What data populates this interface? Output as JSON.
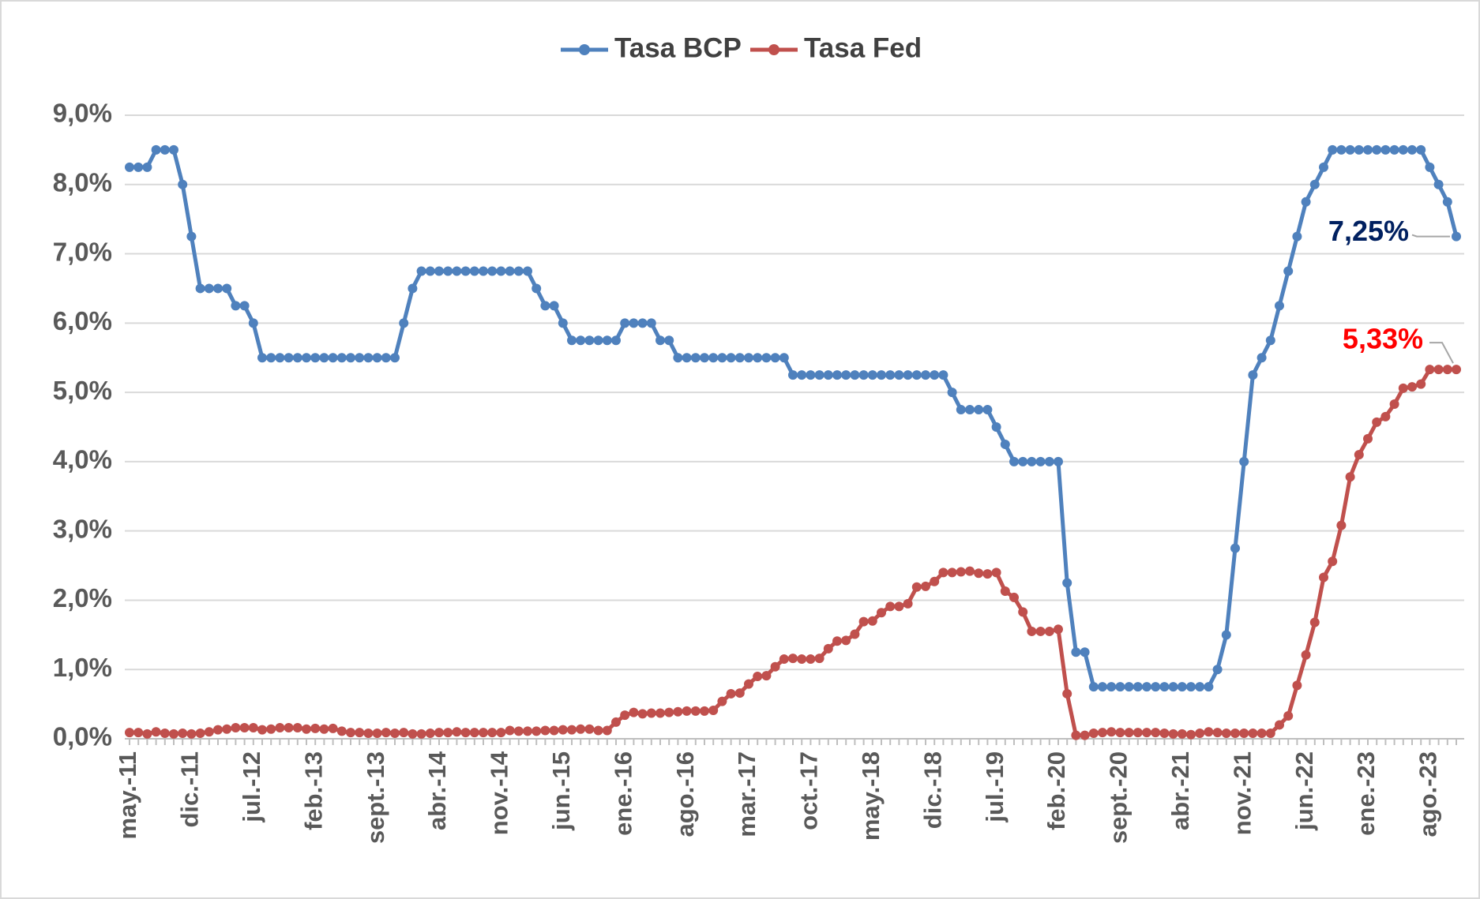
{
  "chart_data": {
    "type": "line",
    "categories": [
      "may.-11",
      null,
      null,
      null,
      null,
      null,
      null,
      "dic.-11",
      null,
      null,
      null,
      null,
      null,
      null,
      "jul.-12",
      null,
      null,
      null,
      null,
      null,
      null,
      "feb.-13",
      null,
      null,
      null,
      null,
      null,
      null,
      "sept.-13",
      null,
      null,
      null,
      null,
      null,
      null,
      "abr.-14",
      null,
      null,
      null,
      null,
      null,
      null,
      "nov.-14",
      null,
      null,
      null,
      null,
      null,
      null,
      "jun.-15",
      null,
      null,
      null,
      null,
      null,
      null,
      "ene.-16",
      null,
      null,
      null,
      null,
      null,
      null,
      "ago.-16",
      null,
      null,
      null,
      null,
      null,
      null,
      "mar.-17",
      null,
      null,
      null,
      null,
      null,
      null,
      "oct.-17",
      null,
      null,
      null,
      null,
      null,
      null,
      "may.-18",
      null,
      null,
      null,
      null,
      null,
      null,
      "dic.-18",
      null,
      null,
      null,
      null,
      null,
      null,
      "jul.-19",
      null,
      null,
      null,
      null,
      null,
      null,
      "feb.-20",
      null,
      null,
      null,
      null,
      null,
      null,
      "sept.-20",
      null,
      null,
      null,
      null,
      null,
      null,
      "abr.-21",
      null,
      null,
      null,
      null,
      null,
      null,
      "nov.-21",
      null,
      null,
      null,
      null,
      null,
      null,
      "jun.-22",
      null,
      null,
      null,
      null,
      null,
      null,
      "ene.-23",
      null,
      null,
      null,
      null,
      null,
      null,
      "ago.-23",
      null,
      null,
      null
    ],
    "series": [
      {
        "name": "Tasa BCP",
        "color": "#4f81bd",
        "end_label": "7,25%",
        "end_label_color": "#002060",
        "values": [
          8.25,
          8.25,
          8.25,
          8.5,
          8.5,
          8.5,
          8.0,
          7.25,
          6.5,
          6.5,
          6.5,
          6.5,
          6.25,
          6.25,
          6.0,
          5.5,
          5.5,
          5.5,
          5.5,
          5.5,
          5.5,
          5.5,
          5.5,
          5.5,
          5.5,
          5.5,
          5.5,
          5.5,
          5.5,
          5.5,
          5.5,
          6.0,
          6.5,
          6.75,
          6.75,
          6.75,
          6.75,
          6.75,
          6.75,
          6.75,
          6.75,
          6.75,
          6.75,
          6.75,
          6.75,
          6.75,
          6.5,
          6.25,
          6.25,
          6.0,
          5.75,
          5.75,
          5.75,
          5.75,
          5.75,
          5.75,
          6.0,
          6.0,
          6.0,
          6.0,
          5.75,
          5.75,
          5.5,
          5.5,
          5.5,
          5.5,
          5.5,
          5.5,
          5.5,
          5.5,
          5.5,
          5.5,
          5.5,
          5.5,
          5.5,
          5.25,
          5.25,
          5.25,
          5.25,
          5.25,
          5.25,
          5.25,
          5.25,
          5.25,
          5.25,
          5.25,
          5.25,
          5.25,
          5.25,
          5.25,
          5.25,
          5.25,
          5.25,
          5.0,
          4.75,
          4.75,
          4.75,
          4.75,
          4.5,
          4.25,
          4.0,
          4.0,
          4.0,
          4.0,
          4.0,
          4.0,
          2.25,
          1.25,
          1.25,
          0.75,
          0.75,
          0.75,
          0.75,
          0.75,
          0.75,
          0.75,
          0.75,
          0.75,
          0.75,
          0.75,
          0.75,
          0.75,
          0.75,
          1.0,
          1.5,
          2.75,
          4.0,
          5.25,
          5.5,
          5.75,
          6.25,
          6.75,
          7.25,
          7.75,
          8.0,
          8.25,
          8.5,
          8.5,
          8.5,
          8.5,
          8.5,
          8.5,
          8.5,
          8.5,
          8.5,
          8.5,
          8.5,
          8.25,
          8.0,
          7.75,
          7.25
        ]
      },
      {
        "name": "Tasa Fed",
        "color": "#c0504d",
        "end_label": "5,33%",
        "end_label_color": "#ff0000",
        "values": [
          0.09,
          0.09,
          0.07,
          0.1,
          0.08,
          0.07,
          0.08,
          0.07,
          0.08,
          0.1,
          0.13,
          0.14,
          0.16,
          0.16,
          0.16,
          0.13,
          0.14,
          0.16,
          0.16,
          0.16,
          0.14,
          0.15,
          0.14,
          0.15,
          0.11,
          0.09,
          0.09,
          0.08,
          0.08,
          0.09,
          0.08,
          0.09,
          0.07,
          0.07,
          0.08,
          0.09,
          0.09,
          0.1,
          0.09,
          0.09,
          0.09,
          0.09,
          0.09,
          0.12,
          0.11,
          0.11,
          0.11,
          0.12,
          0.12,
          0.13,
          0.13,
          0.14,
          0.14,
          0.12,
          0.12,
          0.24,
          0.34,
          0.38,
          0.36,
          0.37,
          0.37,
          0.38,
          0.39,
          0.4,
          0.4,
          0.4,
          0.41,
          0.54,
          0.65,
          0.66,
          0.79,
          0.9,
          0.91,
          1.04,
          1.15,
          1.16,
          1.15,
          1.15,
          1.16,
          1.3,
          1.41,
          1.42,
          1.51,
          1.69,
          1.7,
          1.82,
          1.91,
          1.91,
          1.95,
          2.19,
          2.2,
          2.27,
          2.4,
          2.4,
          2.41,
          2.42,
          2.39,
          2.38,
          2.4,
          2.13,
          2.04,
          1.83,
          1.55,
          1.55,
          1.55,
          1.58,
          0.65,
          0.05,
          0.05,
          0.08,
          0.09,
          0.1,
          0.09,
          0.09,
          0.09,
          0.09,
          0.09,
          0.08,
          0.07,
          0.07,
          0.06,
          0.08,
          0.1,
          0.09,
          0.08,
          0.08,
          0.08,
          0.08,
          0.08,
          0.08,
          0.2,
          0.33,
          0.77,
          1.21,
          1.68,
          2.33,
          2.56,
          3.08,
          3.78,
          4.1,
          4.33,
          4.57,
          4.65,
          4.83,
          5.06,
          5.08,
          5.12,
          5.33,
          5.33,
          5.33,
          5.33
        ]
      }
    ],
    "ylim": [
      0,
      9
    ],
    "yticks": [
      {
        "value": 0,
        "label": "0,0%"
      },
      {
        "value": 1,
        "label": "1,0%"
      },
      {
        "value": 2,
        "label": "2,0%"
      },
      {
        "value": 3,
        "label": "3,0%"
      },
      {
        "value": 4,
        "label": "4,0%"
      },
      {
        "value": 5,
        "label": "5,0%"
      },
      {
        "value": 6,
        "label": "6,0%"
      },
      {
        "value": 7,
        "label": "7,0%"
      },
      {
        "value": 8,
        "label": "8,0%"
      },
      {
        "value": 9,
        "label": "9,0%"
      }
    ],
    "grid": true,
    "legend": "top"
  }
}
